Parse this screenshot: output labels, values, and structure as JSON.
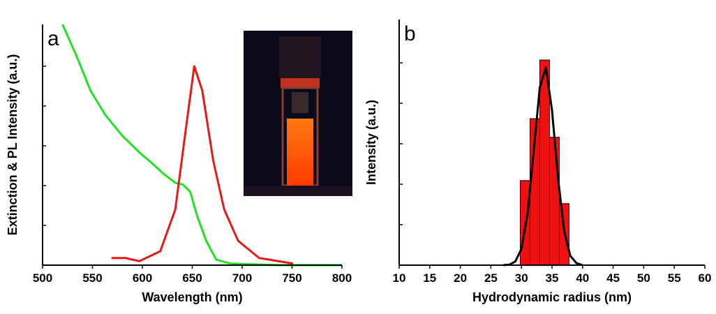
{
  "chart_data": [
    {
      "type": "line",
      "panel_label": "a",
      "x_label": "Wavelength (nm)",
      "y_label": "Extinction & PL Intensity (a.u.)",
      "xlim": [
        500,
        800
      ],
      "xticks": [
        500,
        550,
        600,
        650,
        700,
        750,
        800
      ],
      "ylim": [
        0,
        6.05
      ],
      "yticks": [
        0,
        1,
        2,
        3,
        4,
        5
      ],
      "series": [
        {
          "color": "#22e022",
          "x": [
            520,
            534,
            548,
            563,
            580,
            598,
            608,
            622,
            633,
            641,
            648,
            655,
            664,
            674,
            688,
            737,
            800
          ],
          "values": [
            6.05,
            5.26,
            4.39,
            3.77,
            3.25,
            2.81,
            2.6,
            2.28,
            2.07,
            2.02,
            1.84,
            1.23,
            0.61,
            0.14,
            0.04,
            0,
            0
          ]
        },
        {
          "color": "#e81818",
          "x": [
            569,
            583,
            597,
            618,
            633,
            644,
            652,
            660,
            671,
            682,
            696,
            717,
            751
          ],
          "values": [
            0.18,
            0.18,
            0.1,
            0.35,
            1.4,
            3.5,
            5.0,
            4.39,
            2.63,
            1.4,
            0.61,
            0.18,
            0.04
          ]
        }
      ]
    },
    {
      "type": "histogram",
      "panel_label": "b",
      "x_label": "Hydrodynamic radius (nm)",
      "y_label": "Intensity (a.u.)",
      "xlim": [
        10,
        60
      ],
      "xticks": [
        10,
        15,
        20,
        25,
        30,
        35,
        40,
        45,
        50,
        55,
        60
      ],
      "ylim": [
        0,
        6.07
      ],
      "yticks": [
        0,
        1,
        2,
        3,
        4,
        5
      ],
      "bins": [
        29.8,
        31.4,
        33.0,
        34.6,
        36.2,
        37.8
      ],
      "values": [
        2.09,
        3.62,
        5.07,
        3.16,
        1.52
      ],
      "color": "#ee1111",
      "series": [
        {
          "color": "#000000",
          "x": [
            27,
            28,
            29,
            30,
            31,
            32,
            33,
            34,
            35,
            36,
            37,
            38,
            39,
            40
          ],
          "values": [
            0,
            0.01,
            0.09,
            0.4,
            1.27,
            2.8,
            4.39,
            4.88,
            3.83,
            2.13,
            0.84,
            0.23,
            0.05,
            0
          ]
        }
      ]
    }
  ]
}
